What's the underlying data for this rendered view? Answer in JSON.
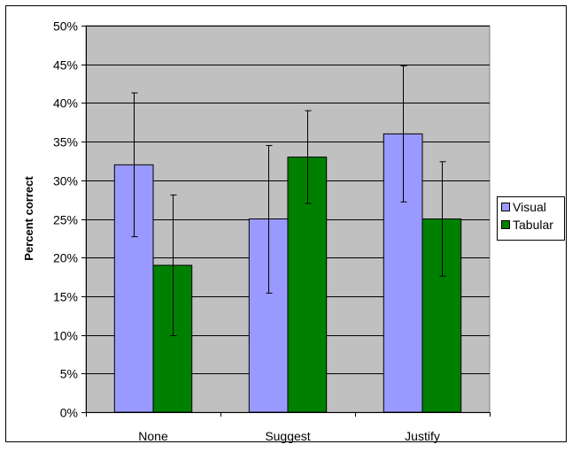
{
  "chart_data": {
    "type": "bar",
    "categories": [
      "None",
      "Suggest",
      "Justify"
    ],
    "series": [
      {
        "name": "Visual",
        "values": [
          32,
          25,
          36
        ],
        "error_low": [
          22.7,
          15.4,
          27.2
        ],
        "error_high": [
          41.3,
          34.5,
          44.8
        ]
      },
      {
        "name": "Tabular",
        "values": [
          19,
          33,
          25
        ],
        "error_low": [
          9.9,
          27.0,
          17.6
        ],
        "error_high": [
          28.1,
          39.0,
          32.4
        ]
      }
    ],
    "ylabel": "Percent correct",
    "xlabel": "",
    "title": "",
    "ylim": [
      0,
      50
    ],
    "ytick_step": 5,
    "ytick_labels": [
      "0%",
      "5%",
      "10%",
      "15%",
      "20%",
      "25%",
      "30%",
      "35%",
      "40%",
      "45%",
      "50%"
    ],
    "value_unit": "%",
    "grid": true,
    "legend_position": "right",
    "colors": {
      "plot_background": "#c0c0c0",
      "gridline": "#000000",
      "series": [
        "#9999ff",
        "#008000"
      ]
    }
  }
}
